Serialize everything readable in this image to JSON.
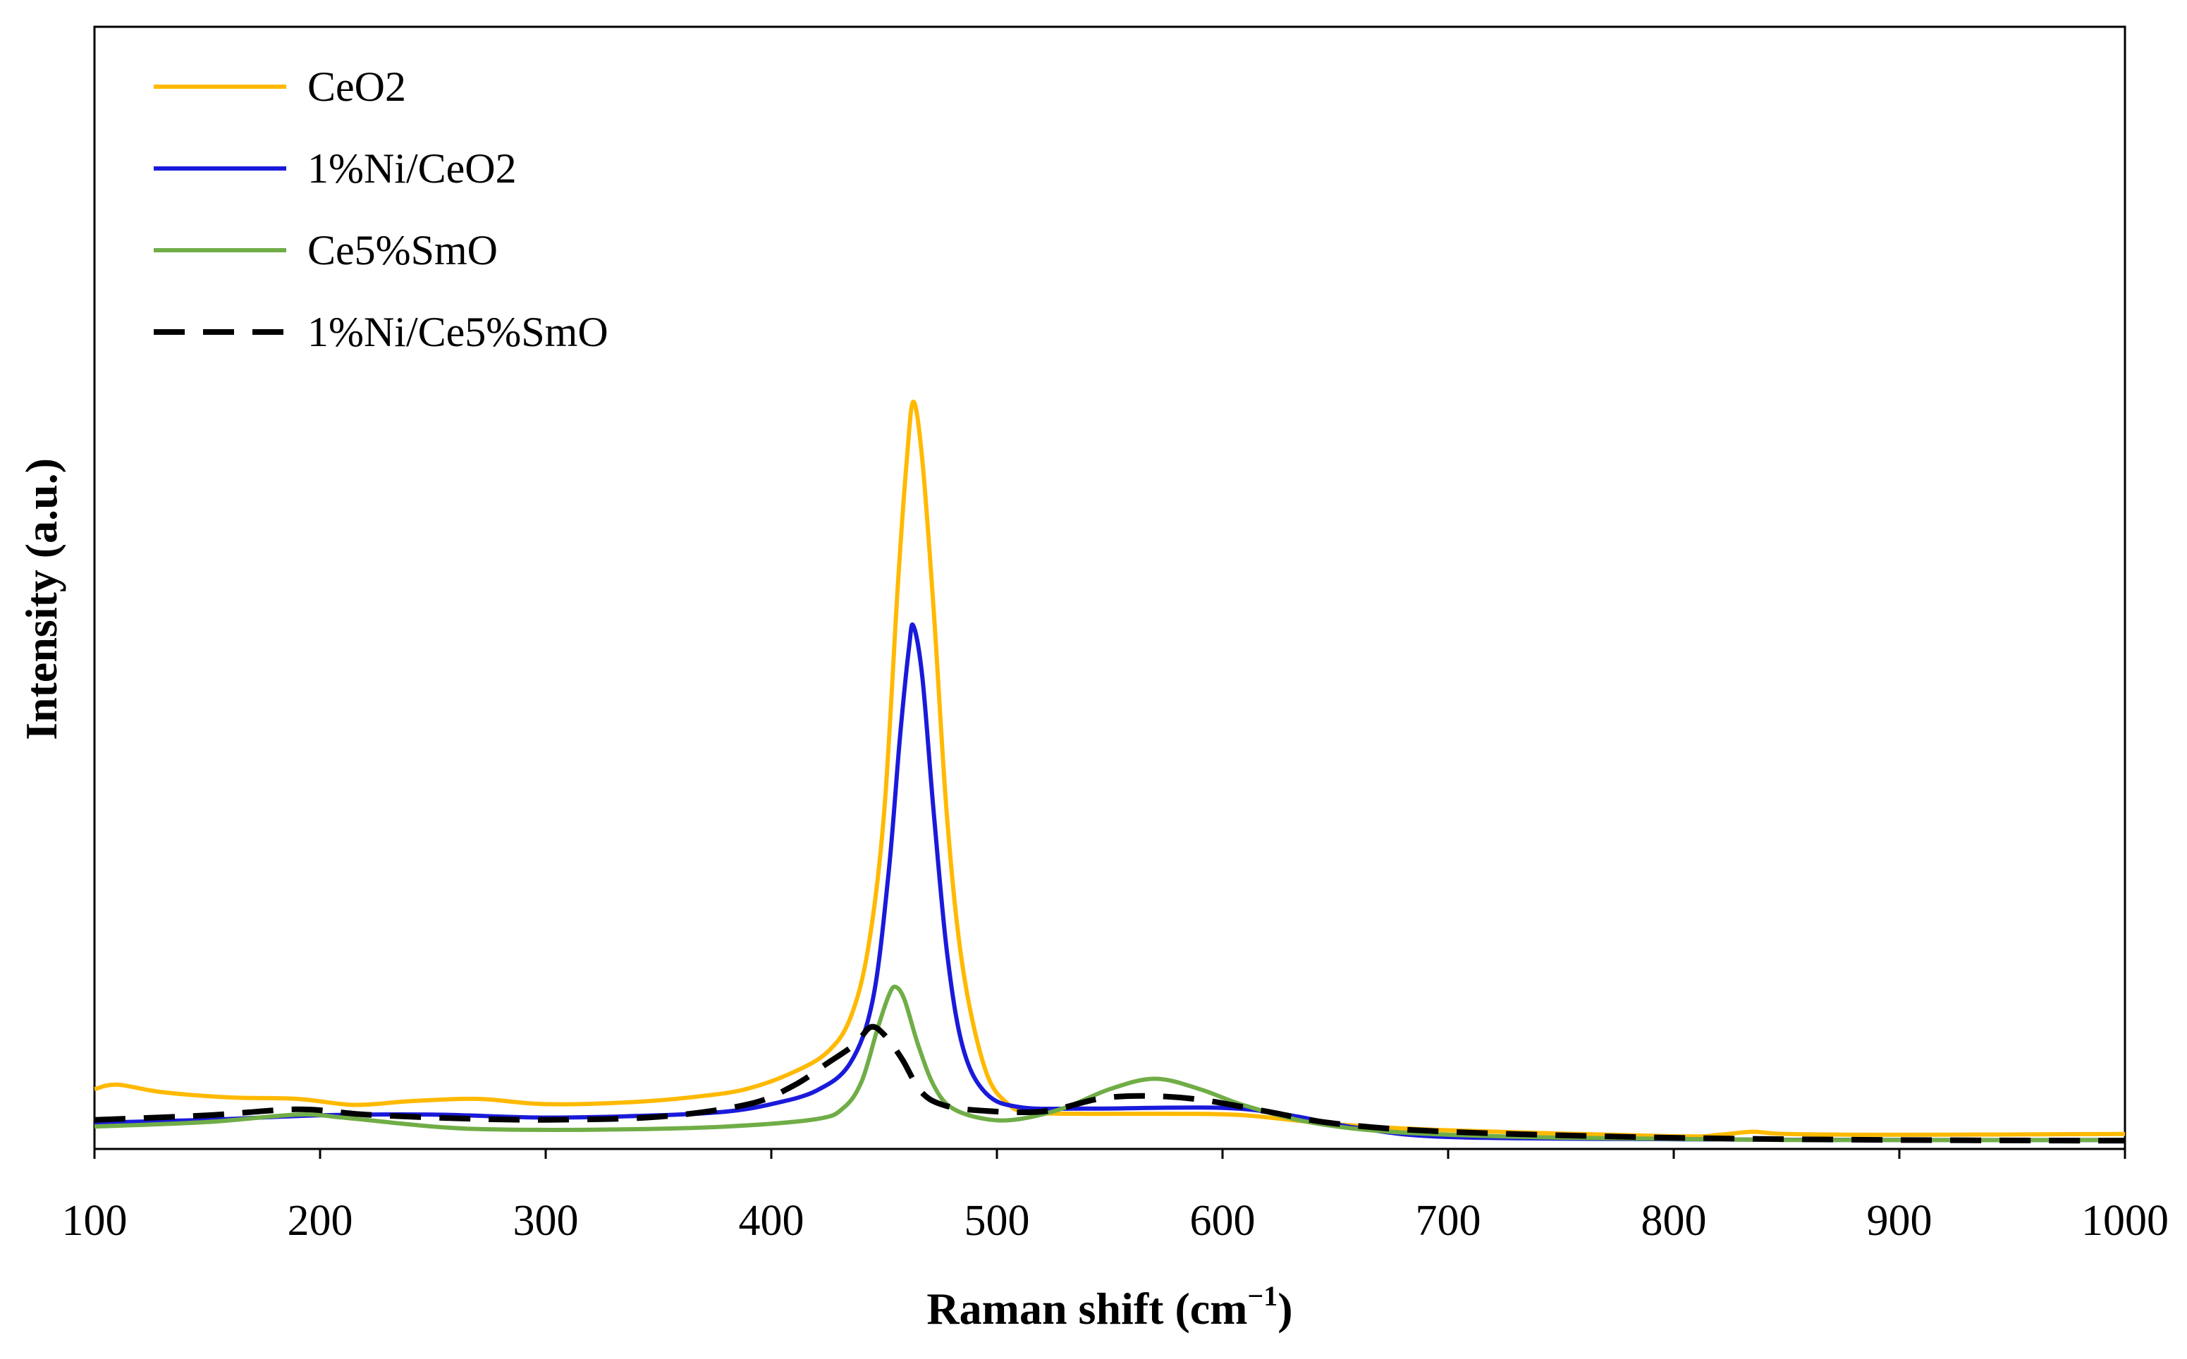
{
  "chart_data": {
    "type": "line",
    "title": "",
    "xlabel": "Raman shift (cm",
    "xlabel_sup": "−1",
    "xlabel_close": ")",
    "ylabel": "Intensity (a.u.)",
    "xlim": [
      100,
      1000
    ],
    "ylim": [
      0,
      100
    ],
    "x_ticks": [
      "100",
      "200",
      "300",
      "400",
      "500",
      "600",
      "700",
      "800",
      "900",
      "1000"
    ],
    "y_ticks": [],
    "grid": false,
    "legend": "top-left",
    "series": [
      {
        "name": "CeO2",
        "color": "#FFB900",
        "dash": "solid",
        "points": [
          [
            100,
            8.0
          ],
          [
            110,
            8.6
          ],
          [
            130,
            7.6
          ],
          [
            160,
            6.9
          ],
          [
            190,
            6.7
          ],
          [
            215,
            5.9
          ],
          [
            240,
            6.4
          ],
          [
            270,
            6.7
          ],
          [
            300,
            6.0
          ],
          [
            340,
            6.3
          ],
          [
            370,
            7.1
          ],
          [
            390,
            8.1
          ],
          [
            410,
            10.3
          ],
          [
            425,
            13.0
          ],
          [
            435,
            17.5
          ],
          [
            443,
            27.0
          ],
          [
            450,
            45.0
          ],
          [
            456,
            75.0
          ],
          [
            460,
            92.0
          ],
          [
            463,
            100.0
          ],
          [
            467,
            92.0
          ],
          [
            472,
            72.0
          ],
          [
            478,
            44.0
          ],
          [
            485,
            24.0
          ],
          [
            495,
            10.5
          ],
          [
            505,
            6.0
          ],
          [
            515,
            4.9
          ],
          [
            540,
            4.7
          ],
          [
            580,
            4.7
          ],
          [
            610,
            4.5
          ],
          [
            650,
            3.3
          ],
          [
            700,
            2.5
          ],
          [
            800,
            1.7
          ],
          [
            820,
            1.9
          ],
          [
            835,
            2.3
          ],
          [
            850,
            2.0
          ],
          [
            900,
            1.9
          ],
          [
            1000,
            2.0
          ]
        ]
      },
      {
        "name": "1%Ni/CeO2",
        "color": "#1A1ADB",
        "dash": "solid",
        "points": [
          [
            100,
            3.5
          ],
          [
            150,
            3.9
          ],
          [
            200,
            4.5
          ],
          [
            250,
            4.6
          ],
          [
            300,
            4.2
          ],
          [
            350,
            4.5
          ],
          [
            380,
            5.0
          ],
          [
            400,
            6.0
          ],
          [
            420,
            7.8
          ],
          [
            435,
            11.5
          ],
          [
            445,
            20.0
          ],
          [
            452,
            37.0
          ],
          [
            457,
            55.0
          ],
          [
            461,
            67.0
          ],
          [
            463,
            70.0
          ],
          [
            467,
            63.0
          ],
          [
            472,
            45.0
          ],
          [
            478,
            26.0
          ],
          [
            485,
            13.5
          ],
          [
            495,
            7.5
          ],
          [
            510,
            5.6
          ],
          [
            540,
            5.4
          ],
          [
            600,
            5.5
          ],
          [
            630,
            4.5
          ],
          [
            660,
            2.8
          ],
          [
            700,
            1.6
          ],
          [
            800,
            1.3
          ],
          [
            900,
            1.2
          ],
          [
            1000,
            1.2
          ]
        ]
      },
      {
        "name": "Ce5%SmO",
        "color": "#70AD47",
        "dash": "solid",
        "points": [
          [
            100,
            3.0
          ],
          [
            150,
            3.6
          ],
          [
            190,
            4.6
          ],
          [
            210,
            4.2
          ],
          [
            250,
            3.0
          ],
          [
            280,
            2.6
          ],
          [
            330,
            2.6
          ],
          [
            380,
            3.0
          ],
          [
            420,
            4.0
          ],
          [
            432,
            5.5
          ],
          [
            440,
            9.0
          ],
          [
            447,
            16.0
          ],
          [
            452,
            20.5
          ],
          [
            455,
            21.7
          ],
          [
            459,
            20.0
          ],
          [
            465,
            14.0
          ],
          [
            472,
            8.5
          ],
          [
            480,
            5.5
          ],
          [
            495,
            4.0
          ],
          [
            510,
            4.0
          ],
          [
            530,
            5.5
          ],
          [
            550,
            8.0
          ],
          [
            570,
            9.4
          ],
          [
            590,
            8.0
          ],
          [
            610,
            5.8
          ],
          [
            640,
            3.5
          ],
          [
            680,
            2.2
          ],
          [
            750,
            1.5
          ],
          [
            850,
            1.2
          ],
          [
            1000,
            1.2
          ]
        ]
      },
      {
        "name": "1%Ni/Ce5%SmO",
        "color": "#000000",
        "dash": "dashed",
        "points": [
          [
            100,
            3.9
          ],
          [
            150,
            4.5
          ],
          [
            190,
            5.3
          ],
          [
            220,
            4.6
          ],
          [
            260,
            4.1
          ],
          [
            300,
            3.9
          ],
          [
            350,
            4.3
          ],
          [
            390,
            6.0
          ],
          [
            410,
            8.5
          ],
          [
            425,
            11.5
          ],
          [
            437,
            14.0
          ],
          [
            444,
            16.3
          ],
          [
            450,
            15.3
          ],
          [
            458,
            12.0
          ],
          [
            466,
            7.8
          ],
          [
            475,
            6.0
          ],
          [
            490,
            5.2
          ],
          [
            520,
            5.0
          ],
          [
            545,
            6.7
          ],
          [
            565,
            7.1
          ],
          [
            590,
            6.6
          ],
          [
            620,
            5.0
          ],
          [
            650,
            3.4
          ],
          [
            700,
            2.3
          ],
          [
            800,
            1.5
          ],
          [
            900,
            1.2
          ],
          [
            1000,
            1.1
          ]
        ]
      }
    ]
  }
}
